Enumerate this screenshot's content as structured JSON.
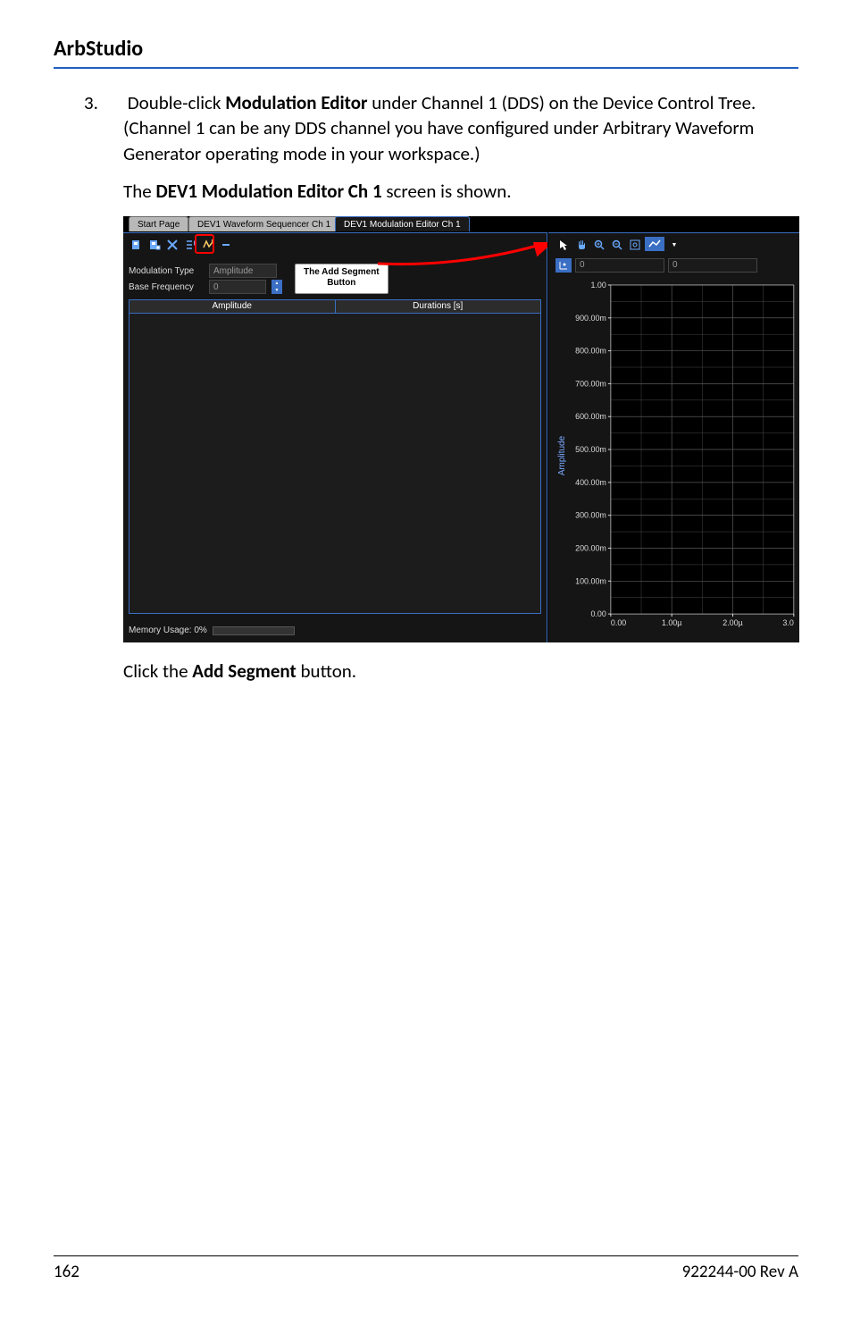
{
  "header": "ArbStudio",
  "step": {
    "num": "3.",
    "text_before": "Double-click ",
    "bold1": "Modulation Editor",
    "text_mid": " under Channel 1 (DDS) on the Device Control Tree. (Channel 1 can be any DDS channel you have configured under Arbitrary Waveform Generator operating mode in your workspace.)"
  },
  "caption": {
    "before": "The ",
    "bold": "DEV1 Modulation Editor Ch 1",
    "after": " screen is shown."
  },
  "screenshot": {
    "tabs": {
      "start": "Start Page",
      "seq": "DEV1 Waveform Sequencer Ch 1",
      "mod": "DEV1 Modulation Editor Ch 1"
    },
    "callout_line1": "The Add Segment",
    "callout_line2": "Button",
    "form": {
      "mod_type_label": "Modulation Type",
      "mod_type_value": "Amplitude",
      "base_freq_label": "Base Frequency",
      "base_freq_value": "0"
    },
    "table": {
      "col1": "Amplitude",
      "col2": "Durations [s]"
    },
    "memory_label": "Memory Usage: 0%",
    "coord_x": "0",
    "coord_y": "0",
    "chart": {
      "ylabel": "Amplitude",
      "ylim": [
        0,
        1.0
      ],
      "yticks": [
        "0.00",
        "100.00m",
        "200.00m",
        "300.00m",
        "400.00m",
        "500.00m",
        "600.00m",
        "700.00m",
        "800.00m",
        "900.00m",
        "1.00"
      ],
      "xlim": [
        0,
        3.0
      ],
      "xticks": [
        "0.00",
        "1.00µ",
        "2.00µ",
        "3.0"
      ],
      "grid_color": "#5a5a5a",
      "bg_color": "#000000",
      "text_color": "#dcdcdc"
    }
  },
  "after_shot": {
    "before": "Click the ",
    "bold": "Add Segment",
    "after": " button."
  },
  "footer": {
    "page": "162",
    "rev": "922244-00 Rev A"
  }
}
